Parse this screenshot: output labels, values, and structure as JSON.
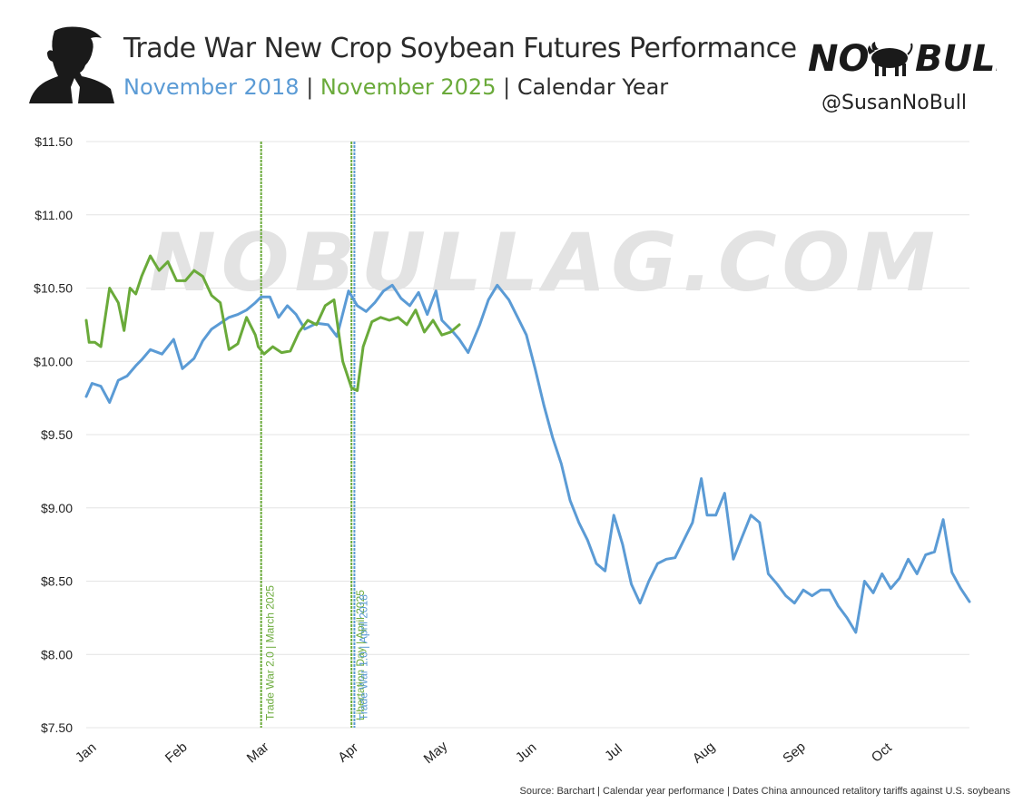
{
  "header": {
    "title": "Trade War New Crop Soybean Futures Performance",
    "subtitle_a": "November 2018",
    "subtitle_sep1": " | ",
    "subtitle_b": "November 2025",
    "subtitle_sep2": " | ",
    "subtitle_c": "Calendar Year",
    "logo_text": "NO BULL",
    "handle": "@SusanNoBull",
    "watermark": "NOBULLAG.COM"
  },
  "footer": {
    "source": "Source: Barchart | Calendar year performance | Dates China announced retalitory tariffs against U.S. soybeans"
  },
  "colors": {
    "series_2018": "#5b9bd5",
    "series_2025": "#6aaa3a",
    "grid": "#e4e4e4",
    "text": "#222222"
  },
  "chart_data": {
    "type": "line",
    "title": "Trade War New Crop Soybean Futures Performance",
    "xlabel": "",
    "ylabel": "",
    "ylim": [
      7.5,
      11.5
    ],
    "yticks": [
      "$7.50",
      "$8.00",
      "$8.50",
      "$9.00",
      "$9.50",
      "$10.00",
      "$10.50",
      "$11.00",
      "$11.50"
    ],
    "ytick_values": [
      7.5,
      8.0,
      8.5,
      9.0,
      9.5,
      10.0,
      10.5,
      11.0,
      11.5
    ],
    "xticks": [
      "Jan",
      "Feb",
      "Mar",
      "Apr",
      "May",
      "Jun",
      "Jul",
      "Aug",
      "Sep",
      "Oct"
    ],
    "grid": true,
    "series": [
      {
        "name": "November 2018",
        "color": "#5b9bd5",
        "x": [
          "Jan 1",
          "Jan 3",
          "Jan 6",
          "Jan 9",
          "Jan 12",
          "Jan 15",
          "Jan 18",
          "Jan 20",
          "Jan 23",
          "Jan 27",
          "Jan 31",
          "Feb 3",
          "Feb 7",
          "Feb 10",
          "Feb 13",
          "Feb 16",
          "Feb 19",
          "Feb 22",
          "Feb 25",
          "Feb 28",
          "Mar 2",
          "Mar 5",
          "Mar 8",
          "Mar 11",
          "Mar 14",
          "Mar 17",
          "Mar 21",
          "Mar 25",
          "Mar 28",
          "Apr 1",
          "Apr 4",
          "Apr 7",
          "Apr 10",
          "Apr 13",
          "Apr 16",
          "Apr 19",
          "Apr 22",
          "Apr 25",
          "Apr 28",
          "May 1",
          "May 3",
          "May 6",
          "May 9",
          "May 12",
          "May 16",
          "May 19",
          "May 22",
          "May 26",
          "May 29",
          "Jun 1",
          "Jun 4",
          "Jun 7",
          "Jun 10",
          "Jun 13",
          "Jun 16",
          "Jun 19",
          "Jun 22",
          "Jun 25",
          "Jun 28",
          "Jul 1",
          "Jul 4",
          "Jul 7",
          "Jul 10",
          "Jul 13",
          "Jul 16",
          "Jul 19",
          "Jul 22",
          "Jul 25",
          "Jul 28",
          "Jul 31",
          "Aug 2",
          "Aug 5",
          "Aug 8",
          "Aug 11",
          "Aug 14",
          "Aug 17",
          "Aug 20",
          "Aug 23",
          "Aug 26",
          "Aug 29",
          "Sep 1",
          "Sep 4",
          "Sep 7",
          "Sep 10",
          "Sep 13",
          "Sep 16",
          "Sep 19",
          "Sep 22",
          "Sep 25",
          "Sep 28",
          "Oct 1",
          "Oct 4",
          "Oct 7",
          "Oct 10",
          "Oct 13",
          "Oct 16",
          "Oct 19",
          "Oct 22",
          "Oct 25",
          "Oct 28",
          "Oct 31"
        ],
        "values": [
          9.76,
          9.85,
          9.83,
          9.72,
          9.87,
          9.9,
          9.97,
          10.01,
          10.08,
          10.05,
          10.15,
          9.95,
          10.02,
          10.14,
          10.22,
          10.26,
          10.3,
          10.32,
          10.35,
          10.4,
          10.44,
          10.44,
          10.3,
          10.38,
          10.32,
          10.22,
          10.26,
          10.25,
          10.17,
          10.48,
          10.38,
          10.34,
          10.4,
          10.48,
          10.52,
          10.43,
          10.38,
          10.47,
          10.32,
          10.48,
          10.28,
          10.22,
          10.15,
          10.06,
          10.25,
          10.42,
          10.52,
          10.42,
          10.3,
          10.18,
          9.95,
          9.7,
          9.48,
          9.3,
          9.05,
          8.9,
          8.78,
          8.62,
          8.57,
          8.95,
          8.75,
          8.48,
          8.35,
          8.5,
          8.62,
          8.65,
          8.66,
          8.78,
          8.9,
          9.2,
          8.95,
          8.95,
          9.1,
          8.65,
          8.8,
          8.95,
          8.9,
          8.55,
          8.48,
          8.4,
          8.35,
          8.44,
          8.4,
          8.44,
          8.44,
          8.33,
          8.25,
          8.15,
          8.5,
          8.42,
          8.55,
          8.45,
          8.52,
          8.65,
          8.55,
          8.68,
          8.7,
          8.92,
          8.56,
          8.45,
          8.36
        ]
      },
      {
        "name": "November 2025",
        "color": "#6aaa3a",
        "x": [
          "Jan 1",
          "Jan 2",
          "Jan 4",
          "Jan 6",
          "Jan 9",
          "Jan 12",
          "Jan 14",
          "Jan 16",
          "Jan 18",
          "Jan 20",
          "Jan 23",
          "Jan 26",
          "Jan 29",
          "Feb 1",
          "Feb 4",
          "Feb 7",
          "Feb 10",
          "Feb 13",
          "Feb 16",
          "Feb 19",
          "Feb 22",
          "Feb 25",
          "Feb 28",
          "Mar 1",
          "Mar 3",
          "Mar 6",
          "Mar 9",
          "Mar 12",
          "Mar 15",
          "Mar 18",
          "Mar 21",
          "Mar 24",
          "Mar 27",
          "Mar 30",
          "Apr 2",
          "Apr 4",
          "Apr 6",
          "Apr 9",
          "Apr 12",
          "Apr 15",
          "Apr 18",
          "Apr 21",
          "Apr 24",
          "Apr 27",
          "Apr 30",
          "May 3",
          "May 6",
          "May 9"
        ],
        "values": [
          10.28,
          10.13,
          10.13,
          10.1,
          10.5,
          10.4,
          10.21,
          10.5,
          10.46,
          10.58,
          10.72,
          10.62,
          10.68,
          10.55,
          10.55,
          10.62,
          10.58,
          10.45,
          10.4,
          10.08,
          10.12,
          10.3,
          10.18,
          10.1,
          10.05,
          10.1,
          10.06,
          10.07,
          10.2,
          10.28,
          10.25,
          10.38,
          10.42,
          10.0,
          9.82,
          9.8,
          10.1,
          10.27,
          10.3,
          10.28,
          10.3,
          10.25,
          10.35,
          10.2,
          10.28,
          10.18,
          10.2,
          10.25
        ]
      }
    ],
    "annotations": [
      {
        "label": "Trade War 2.0 | March 2025",
        "x": "Mar 2",
        "color": "#6aaa3a"
      },
      {
        "label": "Libertation Day | April 2025",
        "x": "Apr 2",
        "color": "#6aaa3a"
      },
      {
        "label": "Trade War 1.0 | April 2018",
        "x": "Apr 3",
        "color": "#5b9bd5"
      }
    ]
  }
}
